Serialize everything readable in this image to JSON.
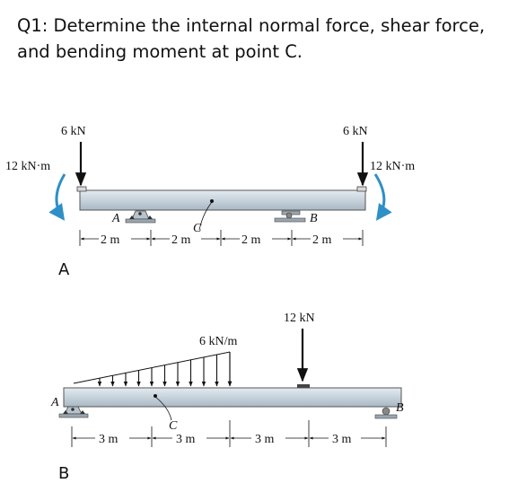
{
  "question": "Q1: Determine the internal normal force, shear force, and bending moment at point C.",
  "figure_a": {
    "part_label": "A",
    "left_force": "6 kN",
    "right_force": "6 kN",
    "left_moment": "12 kN·m",
    "right_moment": "12 kN·m",
    "support_a": "A",
    "support_b": "B",
    "point_c": "C",
    "dims": [
      "2 m",
      "2 m",
      "2 m",
      "2 m"
    ],
    "colors": {
      "beam": "#c9d5de",
      "moment_arrow": "#2f8fc7"
    }
  },
  "figure_b": {
    "part_label": "B",
    "distributed_load": "6 kN/m",
    "point_load": "12 kN",
    "support_a": "A",
    "support_b": "B",
    "point_c": "C",
    "dims": [
      "3 m",
      "3 m",
      "3 m",
      "3 m"
    ]
  }
}
